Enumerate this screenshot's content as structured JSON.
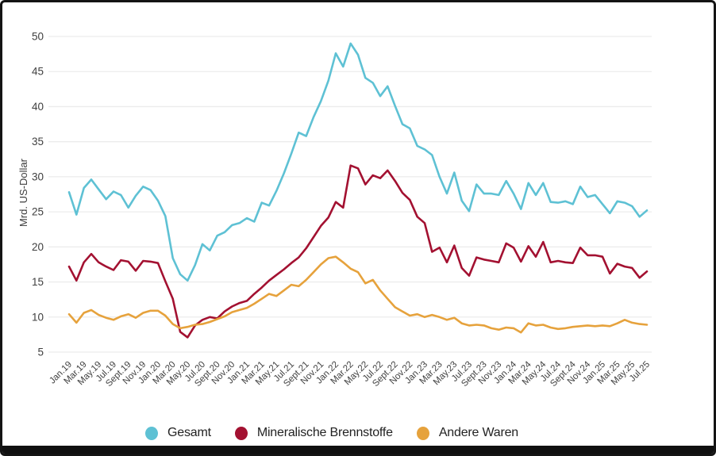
{
  "frame": {
    "background_color": "#ffffff",
    "border_color": "#141414",
    "bottom_bar_color": "#101010",
    "grid_color": "#ececec",
    "axis_text_color": "#404040"
  },
  "chart_data": {
    "type": "line",
    "title": "",
    "xlabel": "",
    "ylabel": "Mrd. US-Dollar",
    "ylim": [
      5,
      50
    ],
    "y_ticks": [
      50,
      45,
      40,
      35,
      30,
      25,
      20,
      15,
      10,
      5
    ],
    "grid": "horizontal",
    "legend_position": "bottom",
    "n_points": 79,
    "x_range_note": "monthly values Jan 2019 - Jul 2025, tick labels every 2nd month",
    "x_tick_labels": [
      "Jan.19",
      "Mar.19",
      "May.19",
      "Jul.19",
      "Sept.19",
      "Nov.19",
      "Jan.20",
      "Mar.20",
      "May.20",
      "Jul.20",
      "Sept.20",
      "Nov.20",
      "Jan.21",
      "Mar.21",
      "May.21",
      "Jul.21",
      "Sept.21",
      "Nov.21",
      "Jan.22",
      "Mar.22",
      "May.22",
      "Jul.22",
      "Sept.22",
      "Nov.22",
      "Jan.23",
      "Mar.23",
      "May.23",
      "Jul.23",
      "Sept.23",
      "Nov.23",
      "Jan.24",
      "Mar.24",
      "May.24",
      "Jul.24",
      "Sept.24",
      "Nov.24",
      "Jan.25",
      "Mar.25",
      "May.25",
      "Jul.25"
    ],
    "series": [
      {
        "name": "Gesamt",
        "color": "#5ec1d4",
        "values": [
          27.8,
          24.6,
          28.4,
          29.6,
          28.2,
          26.8,
          27.9,
          27.4,
          25.6,
          27.3,
          28.6,
          28.1,
          26.6,
          24.4,
          18.4,
          16.1,
          15.2,
          17.4,
          20.4,
          19.5,
          21.6,
          22.1,
          23.1,
          23.4,
          24.1,
          23.6,
          26.3,
          25.9,
          28.0,
          30.5,
          33.3,
          36.3,
          35.8,
          38.5,
          40.8,
          43.7,
          47.6,
          45.7,
          49.0,
          47.4,
          44.1,
          43.4,
          41.5,
          42.9,
          40.1,
          37.5,
          36.9,
          34.4,
          33.9,
          33.1,
          30.0,
          27.6,
          30.6,
          26.6,
          25.1,
          28.9,
          27.6,
          27.6,
          27.4,
          29.4,
          27.6,
          25.4,
          29.1,
          27.4,
          29.1,
          26.4,
          26.3,
          26.5,
          26.1,
          28.6,
          27.1,
          27.4,
          26.1,
          24.8,
          26.5,
          26.3,
          25.8,
          24.3,
          25.2
        ]
      },
      {
        "name": "Mineralische Brennstoffe",
        "color": "#a31131",
        "values": [
          17.2,
          15.2,
          17.8,
          19.0,
          17.8,
          17.2,
          16.7,
          18.1,
          17.9,
          16.6,
          18.0,
          17.9,
          17.7,
          15.1,
          12.6,
          7.9,
          7.1,
          8.8,
          9.6,
          10.0,
          9.8,
          10.8,
          11.5,
          12.0,
          12.3,
          13.3,
          14.2,
          15.2,
          16.0,
          16.8,
          17.7,
          18.5,
          19.8,
          21.4,
          23.0,
          24.2,
          26.4,
          25.6,
          31.6,
          31.2,
          28.9,
          30.2,
          29.8,
          30.9,
          29.4,
          27.7,
          26.7,
          24.3,
          23.4,
          19.3,
          19.9,
          17.8,
          20.2,
          17.0,
          15.9,
          18.5,
          18.2,
          18.0,
          17.8,
          20.5,
          19.9,
          17.9,
          20.1,
          18.6,
          20.7,
          17.8,
          18.0,
          17.8,
          17.7,
          19.9,
          18.8,
          18.8,
          18.6,
          16.2,
          17.6,
          17.2,
          17.0,
          15.6,
          16.5
        ]
      },
      {
        "name": "Andere Waren",
        "color": "#e6a23c",
        "values": [
          10.4,
          9.2,
          10.6,
          11.0,
          10.3,
          9.9,
          9.6,
          10.1,
          10.4,
          9.9,
          10.6,
          10.9,
          10.9,
          10.2,
          9.0,
          8.4,
          8.6,
          8.9,
          9.0,
          9.3,
          9.7,
          10.1,
          10.7,
          11.0,
          11.3,
          11.9,
          12.6,
          13.3,
          13.0,
          13.8,
          14.6,
          14.4,
          15.3,
          16.4,
          17.5,
          18.4,
          18.6,
          17.8,
          16.9,
          16.4,
          14.8,
          15.3,
          13.8,
          12.6,
          11.4,
          10.8,
          10.2,
          10.4,
          10.0,
          10.3,
          10.0,
          9.6,
          9.9,
          9.1,
          8.8,
          8.9,
          8.8,
          8.4,
          8.2,
          8.5,
          8.4,
          7.8,
          9.1,
          8.8,
          8.9,
          8.5,
          8.3,
          8.4,
          8.6,
          8.7,
          8.8,
          8.7,
          8.8,
          8.7,
          9.1,
          9.6,
          9.2,
          9.0,
          8.9
        ]
      }
    ]
  },
  "legend": {
    "items": [
      {
        "label": "Gesamt",
        "color": "#5ec1d4"
      },
      {
        "label": "Mineralische Brennstoffe",
        "color": "#a31131"
      },
      {
        "label": "Andere Waren",
        "color": "#e6a23c"
      }
    ]
  }
}
